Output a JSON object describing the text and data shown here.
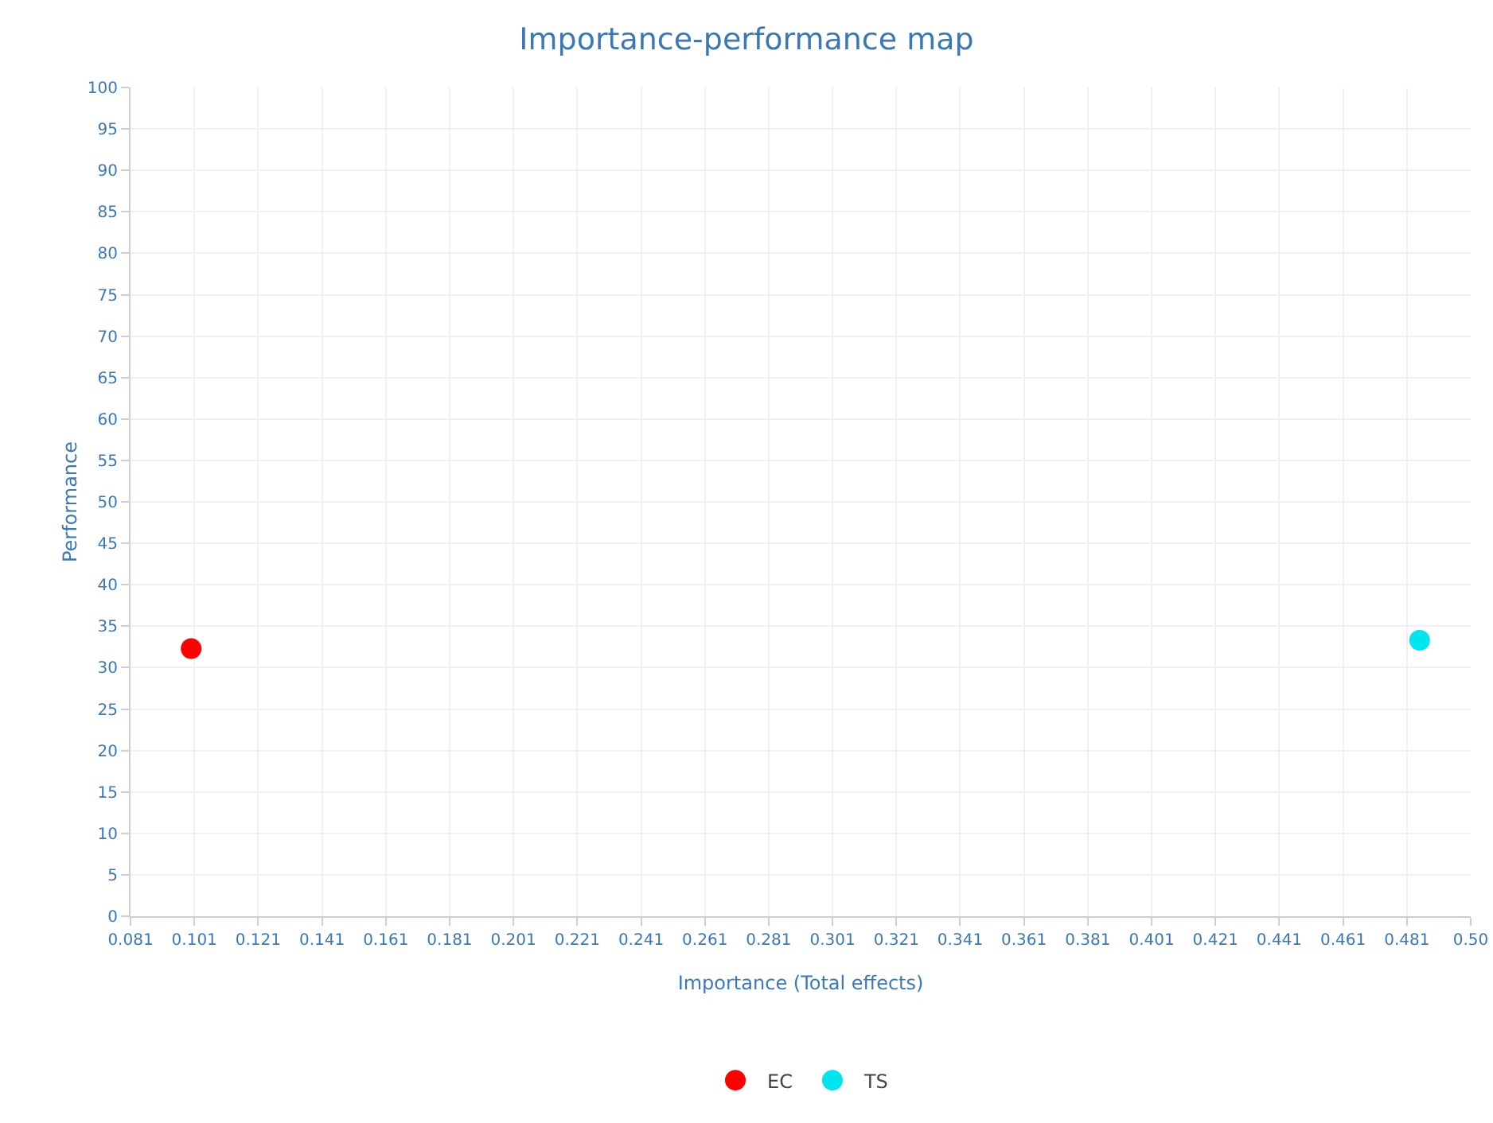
{
  "chart_data": {
    "type": "scatter",
    "title": "Importance-performance map",
    "xlabel": "Importance (Total effects)",
    "ylabel": "Performance",
    "series": [
      {
        "name": "EC",
        "color": "#ff0000",
        "x": [
          0.1
        ],
        "values": [
          32.3
        ]
      },
      {
        "name": "TS",
        "color": "#00e5ee",
        "x": [
          0.485
        ],
        "values": [
          33.3
        ]
      }
    ],
    "xlim": [
      0.081,
      0.501
    ],
    "xticks": [
      0.081,
      0.101,
      0.121,
      0.141,
      0.161,
      0.181,
      0.201,
      0.221,
      0.241,
      0.261,
      0.281,
      0.301,
      0.321,
      0.341,
      0.361,
      0.381,
      0.401,
      0.421,
      0.441,
      0.461,
      0.481,
      {
        "value": 0.501,
        "label": "0.50"
      }
    ],
    "ylim": [
      0,
      100
    ],
    "yticks": [
      0,
      5,
      10,
      15,
      20,
      25,
      30,
      35,
      40,
      45,
      50,
      55,
      60,
      65,
      70,
      75,
      80,
      85,
      90,
      95,
      100
    ],
    "grid": true,
    "legend": "bottom",
    "marker": "circle"
  }
}
